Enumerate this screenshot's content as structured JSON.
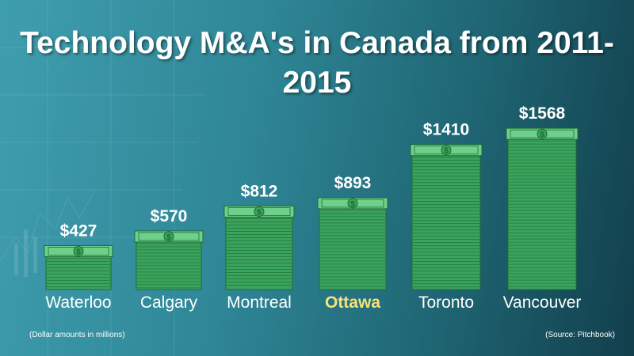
{
  "title": "Technology M&A's in Canada from 2011-2015",
  "note_units": "(Dollar amounts in millions)",
  "note_source": "(Source: Pitchbook)",
  "colors": {
    "money_fill": "#3aa35c",
    "money_dark": "#1e6b36",
    "money_light": "#6fd08b",
    "city_label": "#ffffff",
    "highlight_label": "#f5e27a"
  },
  "chart_data": {
    "type": "bar",
    "title": "Technology M&A's in Canada from 2011-2015",
    "categories": [
      "Waterloo",
      "Calgary",
      "Montreal",
      "Ottawa",
      "Toronto",
      "Vancouver"
    ],
    "values": [
      427,
      570,
      812,
      893,
      1410,
      1568
    ],
    "value_labels": [
      "$427",
      "$570",
      "$812",
      "$893",
      "$1410",
      "$1568"
    ],
    "highlighted_category": "Ottawa",
    "mark_style": "stack-of-dollar-bills",
    "ylim": [
      0,
      1600
    ],
    "grid": false,
    "legend": "none"
  }
}
